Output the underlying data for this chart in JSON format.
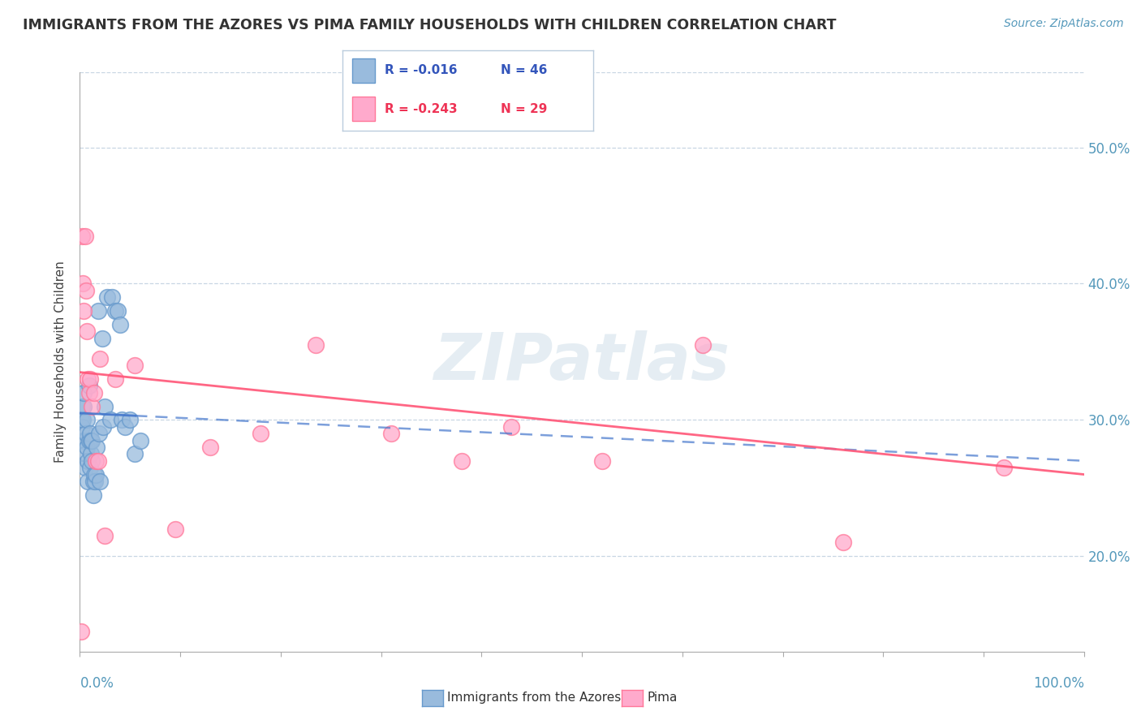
{
  "title": "IMMIGRANTS FROM THE AZORES VS PIMA FAMILY HOUSEHOLDS WITH CHILDREN CORRELATION CHART",
  "source": "Source: ZipAtlas.com",
  "ylabel": "Family Households with Children",
  "legend_r1": "R = -0.016",
  "legend_n1": "N = 46",
  "legend_r2": "R = -0.243",
  "legend_n2": "N = 29",
  "legend_label1": "Immigrants from the Azores",
  "legend_label2": "Pima",
  "blue_color": "#99BBDD",
  "pink_color": "#FFAACC",
  "blue_scatter_edge": "#6699CC",
  "pink_scatter_edge": "#FF7799",
  "blue_line_color": "#4477CC",
  "pink_line_color": "#FF5577",
  "watermark": "ZIPatlas",
  "ytick_labels": [
    "20.0%",
    "30.0%",
    "40.0%",
    "50.0%"
  ],
  "ytick_values": [
    0.2,
    0.3,
    0.4,
    0.5
  ],
  "xlim": [
    0.0,
    1.0
  ],
  "ylim": [
    0.13,
    0.555
  ],
  "blue_x": [
    0.001,
    0.002,
    0.002,
    0.003,
    0.003,
    0.004,
    0.004,
    0.005,
    0.005,
    0.006,
    0.006,
    0.007,
    0.007,
    0.008,
    0.008,
    0.009,
    0.009,
    0.01,
    0.01,
    0.011,
    0.011,
    0.012,
    0.012,
    0.013,
    0.013,
    0.014,
    0.015,
    0.016,
    0.017,
    0.018,
    0.019,
    0.02,
    0.022,
    0.023,
    0.025,
    0.027,
    0.03,
    0.032,
    0.035,
    0.038,
    0.04,
    0.042,
    0.045,
    0.05,
    0.055,
    0.06
  ],
  "blue_y": [
    0.3,
    0.295,
    0.31,
    0.285,
    0.3,
    0.31,
    0.32,
    0.265,
    0.285,
    0.275,
    0.29,
    0.28,
    0.3,
    0.255,
    0.27,
    0.325,
    0.285,
    0.29,
    0.265,
    0.275,
    0.285,
    0.27,
    0.285,
    0.255,
    0.245,
    0.26,
    0.255,
    0.26,
    0.28,
    0.38,
    0.29,
    0.255,
    0.36,
    0.295,
    0.31,
    0.39,
    0.3,
    0.39,
    0.38,
    0.38,
    0.37,
    0.3,
    0.295,
    0.3,
    0.275,
    0.285
  ],
  "pink_x": [
    0.001,
    0.002,
    0.003,
    0.004,
    0.005,
    0.006,
    0.007,
    0.008,
    0.009,
    0.01,
    0.012,
    0.014,
    0.016,
    0.018,
    0.02,
    0.025,
    0.035,
    0.055,
    0.095,
    0.13,
    0.18,
    0.235,
    0.31,
    0.38,
    0.43,
    0.52,
    0.62,
    0.76,
    0.92
  ],
  "pink_y": [
    0.145,
    0.435,
    0.4,
    0.38,
    0.435,
    0.395,
    0.365,
    0.33,
    0.32,
    0.33,
    0.31,
    0.32,
    0.27,
    0.27,
    0.345,
    0.215,
    0.33,
    0.34,
    0.22,
    0.28,
    0.29,
    0.355,
    0.29,
    0.27,
    0.295,
    0.27,
    0.355,
    0.21,
    0.265
  ]
}
